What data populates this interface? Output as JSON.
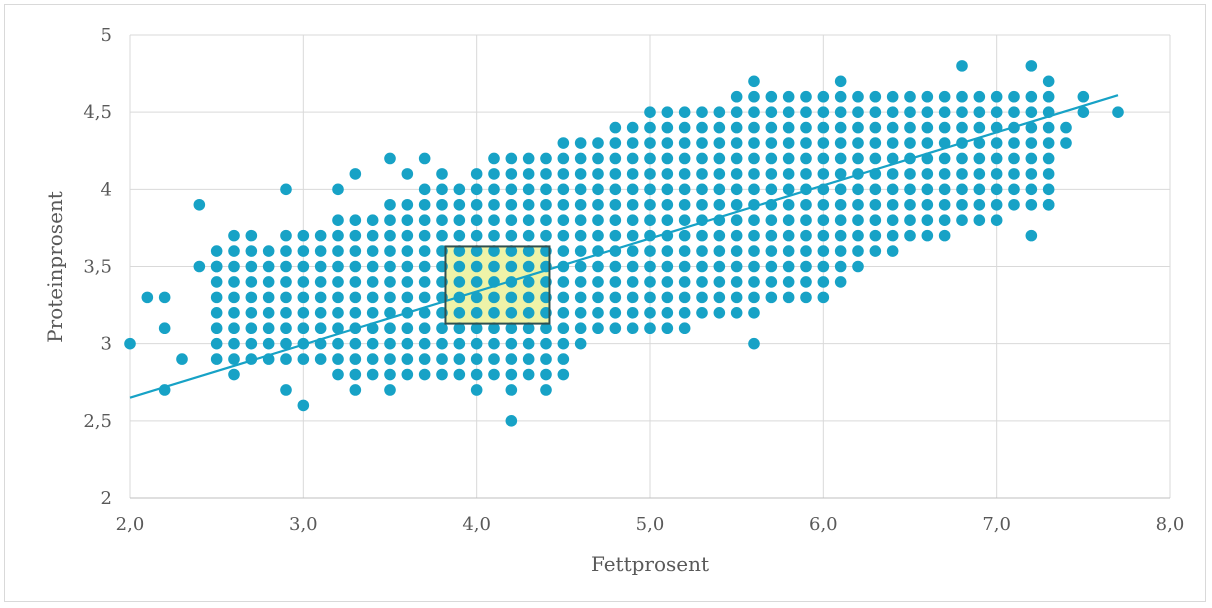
{
  "chart_data": {
    "type": "scatter",
    "title": "",
    "xlabel": "Fettprosent",
    "ylabel": "Proteinprosent",
    "xlim": [
      2.0,
      8.0
    ],
    "ylim": [
      2,
      5
    ],
    "x_ticks": [
      "2,0",
      "3,0",
      "4,0",
      "5,0",
      "6,0",
      "7,0",
      "8,0"
    ],
    "y_ticks": [
      "2",
      "2,5",
      "3",
      "3,5",
      "4",
      "4,5",
      "5"
    ],
    "grid": true,
    "point_color": "#17a2c6",
    "trendline": {
      "x": [
        2.0,
        7.7
      ],
      "y": [
        2.65,
        4.61
      ],
      "color": "#17a2c6"
    },
    "highlight": {
      "x": [
        3.82,
        4.42
      ],
      "y": [
        3.13,
        3.63
      ],
      "fill": "#eef3a8",
      "stroke": "#2f4f4f"
    },
    "outliers": [
      [
        2.0,
        3.0
      ],
      [
        2.1,
        3.3
      ],
      [
        2.2,
        3.3
      ],
      [
        2.2,
        3.1
      ],
      [
        2.2,
        2.7
      ],
      [
        2.3,
        2.9
      ],
      [
        2.4,
        3.9
      ],
      [
        2.4,
        3.5
      ],
      [
        2.5,
        3.5
      ],
      [
        2.6,
        3.7
      ],
      [
        2.7,
        3.7
      ],
      [
        2.6,
        2.8
      ],
      [
        2.9,
        4.0
      ],
      [
        2.9,
        2.7
      ],
      [
        3.0,
        2.6
      ],
      [
        3.2,
        4.0
      ],
      [
        3.3,
        4.1
      ],
      [
        3.5,
        4.2
      ],
      [
        3.6,
        4.1
      ],
      [
        3.7,
        4.2
      ],
      [
        3.8,
        4.1
      ],
      [
        4.2,
        2.5
      ],
      [
        4.4,
        2.7
      ],
      [
        5.6,
        3.0
      ],
      [
        5.6,
        4.7
      ],
      [
        6.1,
        4.7
      ],
      [
        6.8,
        4.8
      ],
      [
        7.2,
        4.8
      ],
      [
        7.2,
        3.7
      ],
      [
        7.3,
        3.9
      ],
      [
        7.3,
        4.7
      ],
      [
        7.4,
        4.3
      ],
      [
        7.4,
        4.4
      ],
      [
        7.5,
        4.5
      ],
      [
        7.5,
        4.6
      ],
      [
        7.7,
        4.5
      ],
      [
        4.0,
        2.7
      ],
      [
        4.2,
        2.7
      ],
      [
        3.3,
        2.7
      ],
      [
        3.5,
        2.7
      ]
    ]
  }
}
